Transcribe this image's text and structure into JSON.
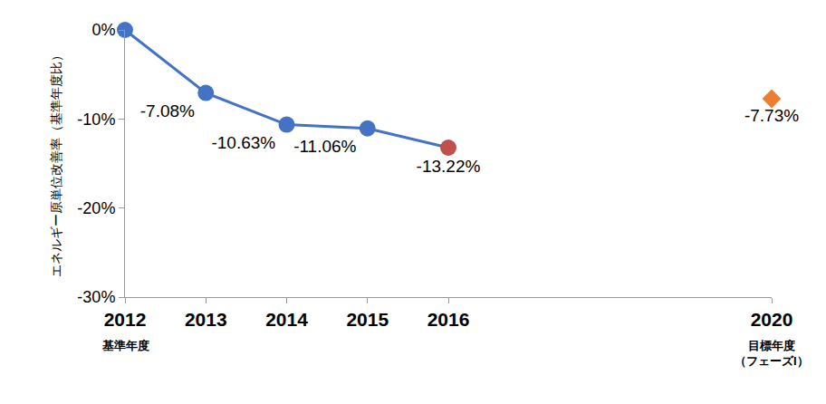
{
  "chart_data": {
    "type": "line",
    "ylabel": "エネルギー原単位改善率（基準年度比）",
    "series": [
      {
        "x": [
          2012,
          2013,
          2014,
          2015,
          2016
        ],
        "values": [
          0,
          -7.08,
          -10.63,
          -11.06,
          -13.22
        ],
        "value_labels": [
          null,
          "-7.08%",
          "-10.63%",
          "-11.06%",
          "-13.22%"
        ],
        "color": "#4472c4",
        "colors": [
          "#4472c4",
          "#4472c4",
          "#4472c4",
          "#4472c4",
          "#c0504d"
        ],
        "marker": "circle",
        "line_style": "solid",
        "type": "line"
      },
      {
        "x": [
          2020
        ],
        "values": [
          -7.73
        ],
        "value_labels": [
          "-7.73%"
        ],
        "color": "#ed7d31",
        "marker": "diamond",
        "type": "scatter"
      }
    ],
    "xlim": [
      2012,
      2020
    ],
    "xticks": [
      2012,
      2013,
      2014,
      2015,
      2016,
      2020
    ],
    "ylim": [
      -30,
      0
    ],
    "yticks": [
      {
        "value": 0,
        "label": "0%"
      },
      {
        "value": -10,
        "label": "-10%"
      },
      {
        "value": -20,
        "label": "-20%"
      },
      {
        "value": -30,
        "label": "-30%"
      }
    ],
    "annotations": [
      {
        "x": 2012,
        "text": "基準年度"
      },
      {
        "x": 2020,
        "text": "目標年度\n（フェーズI）"
      }
    ],
    "grid": false,
    "data_labels": true
  }
}
